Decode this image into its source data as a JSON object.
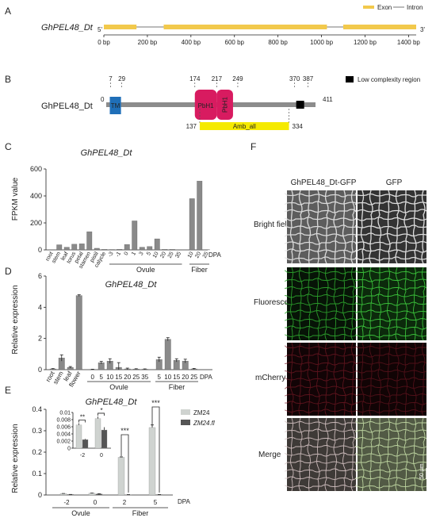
{
  "panelA": {
    "letter": "A",
    "gene": "GhPEL48_Dt",
    "five": "5'",
    "three": "3'",
    "legend": {
      "exon": "Exon",
      "intron": "Intron"
    },
    "exon_color": "#f2c94c",
    "intron_color": "#777777",
    "ticks": [
      "0 bp",
      "200 bp",
      "400 bp",
      "600 bp",
      "800 bp",
      "1000 bp",
      "1200 bp",
      "1400 bp"
    ],
    "exons": [
      [
        0,
        150
      ],
      [
        275,
        1025
      ],
      [
        1100,
        1435
      ]
    ],
    "length": 1435
  },
  "panelB": {
    "letter": "B",
    "protein": "GhPEL48_Dt",
    "length": 411,
    "start": "0",
    "end": "411",
    "legend": "Low complexity region",
    "domains": [
      {
        "label": "TM",
        "start": 7,
        "end": 29,
        "color": "#1f6fb8"
      },
      {
        "label": "PbH1",
        "start": 174,
        "end": 217,
        "color": "#d81b60"
      },
      {
        "label": "PbH1",
        "start": 217,
        "end": 249,
        "color": "#d81b60"
      }
    ],
    "low_complexity": {
      "start": 370,
      "end": 387,
      "color": "#000000"
    },
    "top_numbers": [
      "7",
      "29",
      "174",
      "217",
      "249",
      "370",
      "387"
    ],
    "amb": {
      "label": "Amb_all",
      "start": 137,
      "end": 334,
      "color": "#f5ea00",
      "start_label": "137",
      "end_label": "334"
    }
  },
  "panelC": {
    "letter": "C",
    "title": "GhPEL48_Dt",
    "chart_data": {
      "type": "bar",
      "ylabel": "FPKM value",
      "ylim": [
        0,
        600
      ],
      "yticks": [
        "0",
        "200",
        "400",
        "600"
      ],
      "categories": [
        "root",
        "stem",
        "leaf",
        "torus",
        "petal",
        "stamen",
        "pistil",
        "calycle",
        "-3",
        "-1",
        "0",
        "1",
        "3",
        "5",
        "10",
        "20",
        "25",
        "35",
        "10",
        "20",
        "25"
      ],
      "values": [
        2,
        38,
        20,
        42,
        45,
        135,
        12,
        4,
        3,
        5,
        40,
        215,
        20,
        25,
        82,
        4,
        4,
        2,
        380,
        510,
        2
      ],
      "groups": [
        "Ovule",
        "Fiber"
      ],
      "xunit": "DPA",
      "bar_color": "#8a8a8a"
    }
  },
  "panelD": {
    "letter": "D",
    "title": "GhPEL48_Dt",
    "chart_data": {
      "type": "bar",
      "ylabel": "Relative expression",
      "ylim": [
        0,
        6
      ],
      "yticks": [
        "0",
        "2",
        "4",
        "6"
      ],
      "categories": [
        "root",
        "stem",
        "leaf",
        "flower",
        "0",
        "5",
        "10",
        "15",
        "20",
        "25",
        "35",
        "5",
        "10",
        "15",
        "20",
        "25"
      ],
      "values": [
        0.05,
        0.75,
        0.15,
        4.75,
        0.02,
        0.45,
        0.55,
        0.15,
        0.05,
        0.04,
        0.03,
        0.65,
        1.95,
        0.6,
        0.55,
        0.05
      ],
      "errors": [
        0.02,
        0.2,
        0.05,
        0.05,
        0.01,
        0.08,
        0.15,
        0.3,
        0.05,
        0.02,
        0.02,
        0.15,
        0.1,
        0.1,
        0.12,
        0.03
      ],
      "groups": [
        "Ovule",
        "Fiber"
      ],
      "xunit": "DPA",
      "bar_color": "#8a8a8a"
    }
  },
  "panelE": {
    "letter": "E",
    "title": "GhPEL48_Dt",
    "chart_data": {
      "type": "bar",
      "ylabel": "Relative expression",
      "ylim": [
        0,
        0.4
      ],
      "yticks": [
        "0",
        "0.1",
        "0.2",
        "0.3",
        "0.4"
      ],
      "categories": [
        "-2",
        "0",
        "2",
        "5"
      ],
      "groups": [
        "Ovule",
        "Fiber"
      ],
      "xunit": "DPA",
      "series": [
        {
          "name": "ZM24",
          "values": [
            0.0065,
            0.0083,
            0.176,
            0.315
          ],
          "errors": [
            0.0005,
            0.0006,
            0.002,
            0.012
          ],
          "color": "#cfd3d0"
        },
        {
          "name": "ZM24.fl",
          "values": [
            0.0024,
            0.0051,
            0.0015,
            0.002
          ],
          "errors": [
            0.0002,
            0.0008,
            0.0004,
            0.0004
          ],
          "color": "#555555"
        }
      ],
      "significance": [
        "***",
        "***"
      ],
      "inset": {
        "ylim": [
          0,
          0.01
        ],
        "yticks": [
          "0",
          "0.002",
          "0.004",
          "0.006",
          "0.008",
          "0.01"
        ],
        "categories": [
          "-2",
          "0"
        ],
        "significance": [
          "**",
          "*"
        ]
      }
    }
  },
  "panelF": {
    "letter": "F",
    "columns": [
      "GhPEL48_Dt-GFP",
      "GFP"
    ],
    "rows": [
      "Bright field",
      "Fluorescence",
      "mCherry",
      "Merge"
    ],
    "scale_bar": "50 μm"
  }
}
